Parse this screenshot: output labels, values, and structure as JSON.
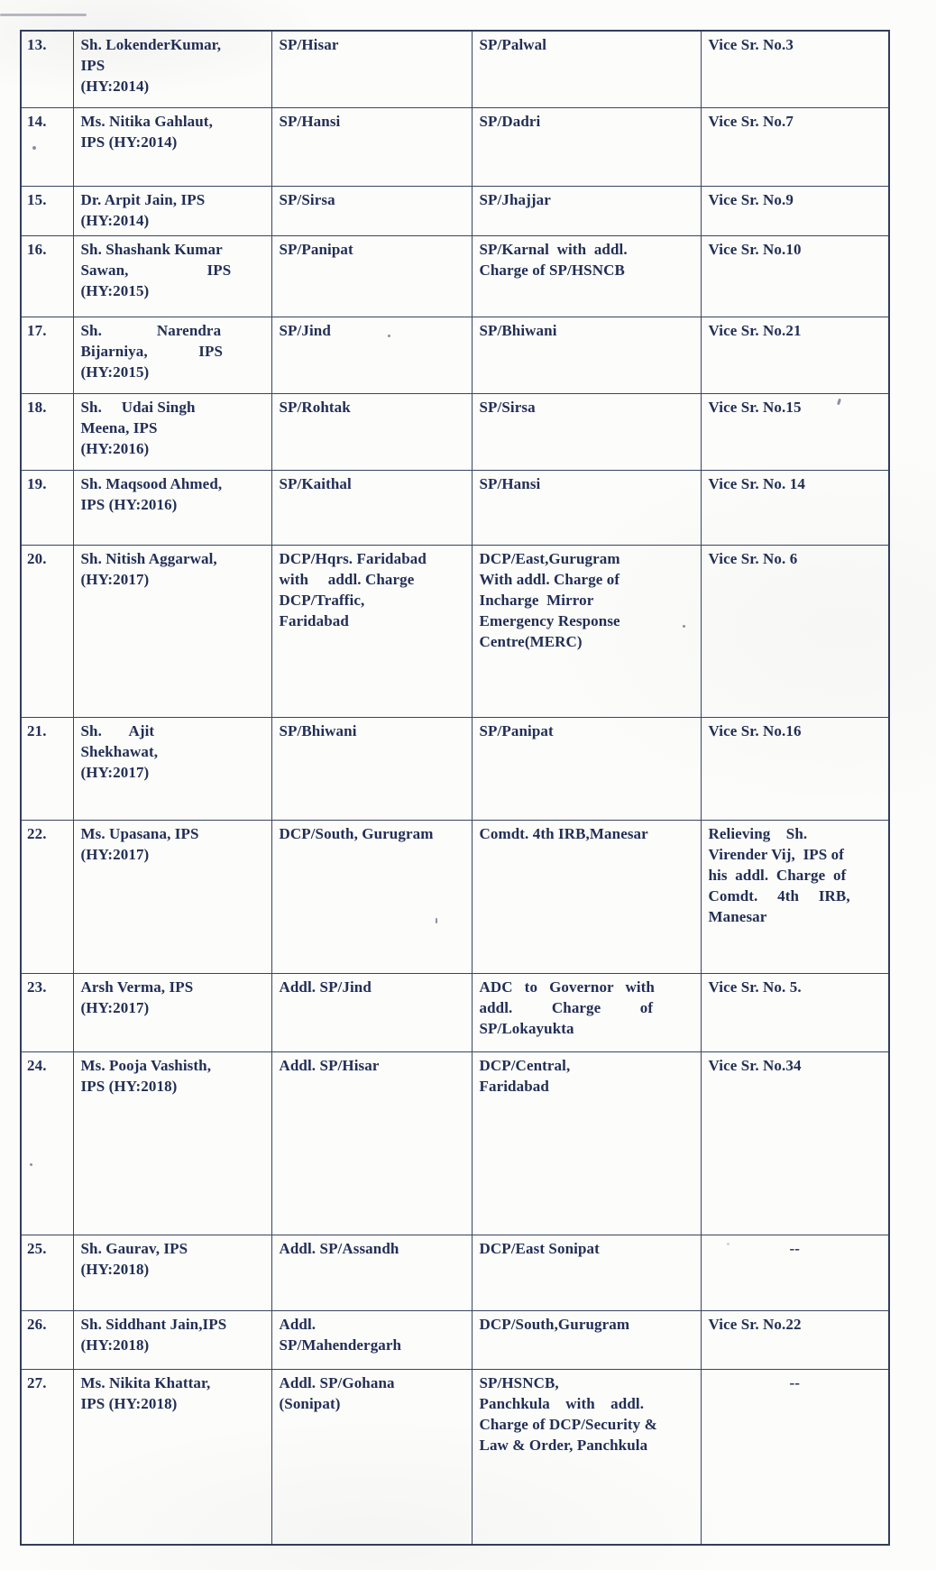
{
  "document": {
    "kind": "scanned transfer-order table",
    "ink_color": "#222e55",
    "border_color": "#3a4462",
    "paper_color": "#fcfcfa"
  },
  "table": {
    "rows": [
      {
        "sr": "13.",
        "name": "Sh. LokenderKumar,\nIPS\n(HY:2014)",
        "present_posting": "SP/Hisar",
        "new_posting": "SP/Palwal",
        "remarks": "Vice Sr. No.3"
      },
      {
        "sr": "14.",
        "name": "Ms. Nitika Gahlaut,\nIPS (HY:2014)",
        "present_posting": "SP/Hansi",
        "new_posting": "SP/Dadri",
        "remarks": "Vice Sr. No.7"
      },
      {
        "sr": "15.",
        "name": "Dr. Arpit Jain, IPS\n(HY:2014)",
        "present_posting": "SP/Sirsa",
        "new_posting": "SP/Jhajjar",
        "remarks": "Vice Sr. No.9"
      },
      {
        "sr": "16.",
        "name": "Sh. Shashank Kumar\nSawan,                    IPS\n(HY:2015)",
        "present_posting": "SP/Panipat",
        "new_posting": "SP/Karnal  with  addl.\nCharge of SP/HSNCB",
        "remarks": "Vice Sr. No.10"
      },
      {
        "sr": "17.",
        "name": "Sh.              Narendra\nBijarniya,             IPS\n(HY:2015)",
        "present_posting": "SP/Jind",
        "new_posting": "SP/Bhiwani",
        "remarks": "Vice Sr. No.21"
      },
      {
        "sr": "18.",
        "name": "Sh.     Udai Singh\nMeena, IPS\n(HY:2016)",
        "present_posting": "SP/Rohtak",
        "new_posting": "SP/Sirsa",
        "remarks": "Vice Sr. No.15"
      },
      {
        "sr": "19.",
        "name": "Sh. Maqsood Ahmed,\nIPS (HY:2016)",
        "present_posting": "SP/Kaithal",
        "new_posting": "SP/Hansi",
        "remarks": "Vice Sr. No. 14"
      },
      {
        "sr": "20.",
        "name": "Sh. Nitish Aggarwal,\n(HY:2017)",
        "present_posting": "DCP/Hqrs. Faridabad\nwith     addl. Charge\nDCP/Traffic,\nFaridabad",
        "new_posting": "DCP/East,Gurugram\nWith addl. Charge of\nIncharge  Mirror\nEmergency Response\nCentre(MERC)",
        "remarks": "Vice Sr. No. 6"
      },
      {
        "sr": "21.",
        "name": "Sh.       Ajit\nShekhawat,\n(HY:2017)",
        "present_posting": "SP/Bhiwani",
        "new_posting": "SP/Panipat",
        "remarks": "Vice Sr. No.16"
      },
      {
        "sr": "22.",
        "name": "Ms. Upasana, IPS\n(HY:2017)",
        "present_posting": "DCP/South, Gurugram",
        "new_posting": "Comdt. 4th IRB,Manesar",
        "remarks": "Relieving    Sh.\nVirender Vij,  IPS of\nhis  addl.  Charge  of\nComdt.     4th     IRB,\nManesar"
      },
      {
        "sr": "23.",
        "name": "Arsh Verma, IPS\n(HY:2017)",
        "present_posting": "Addl. SP/Jind",
        "new_posting": "ADC   to   Governor   with\naddl.          Charge          of\nSP/Lokayukta",
        "remarks": "Vice Sr. No. 5."
      },
      {
        "sr": "24.",
        "name": "Ms. Pooja Vashisth,\nIPS (HY:2018)",
        "present_posting": "Addl. SP/Hisar",
        "new_posting": "DCP/Central,\nFaridabad",
        "remarks": "Vice Sr. No.34"
      },
      {
        "sr": "25.",
        "name": "Sh. Gaurav, IPS\n(HY:2018)",
        "present_posting": "Addl. SP/Assandh",
        "new_posting": "DCP/East Sonipat",
        "remarks": "--"
      },
      {
        "sr": "26.",
        "name": "Sh. Siddhant Jain,IPS\n(HY:2018)",
        "present_posting": "Addl.\nSP/Mahendergarh",
        "new_posting": "DCP/South,Gurugram",
        "remarks": "Vice Sr. No.22"
      },
      {
        "sr": "27.",
        "name": "Ms. Nikita Khattar,\nIPS (HY:2018)",
        "present_posting": "Addl. SP/Gohana\n(Sonipat)",
        "new_posting": "SP/HSNCB,\nPanchkula    with    addl.\nCharge of DCP/Security &\nLaw & Order, Panchkula",
        "remarks": "--"
      }
    ]
  }
}
